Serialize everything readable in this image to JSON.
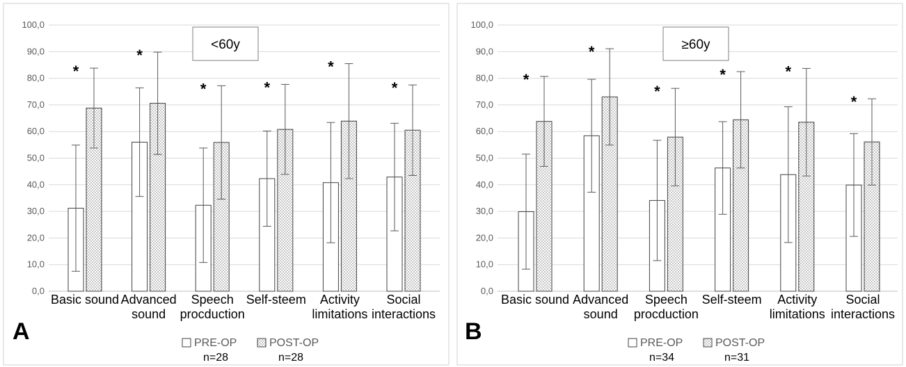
{
  "chart_data": [
    {
      "type": "bar",
      "panel_letter": "A",
      "inset_label": "<60y",
      "categories": [
        [
          "Basic sound"
        ],
        [
          "Advanced",
          "sound"
        ],
        [
          "Speech",
          "procduction"
        ],
        [
          "Self-steem"
        ],
        [
          "Activity",
          "limitations"
        ],
        [
          "Social",
          "interactions"
        ]
      ],
      "ylim": [
        0,
        100
      ],
      "yticks": [
        "0,0",
        "10,0",
        "20,0",
        "30,0",
        "40,0",
        "50,0",
        "60,0",
        "70,0",
        "80,0",
        "90,0",
        "100,0"
      ],
      "grid": true,
      "series": [
        {
          "name": "PRE-OP",
          "n_label": "n=28",
          "fill": "#ffffff",
          "values": [
            31.2,
            56.0,
            32.3,
            42.3,
            40.8,
            42.9
          ],
          "sd": [
            23.7,
            20.4,
            21.5,
            17.9,
            22.6,
            20.2
          ]
        },
        {
          "name": "POST-OP",
          "n_label": "n=28",
          "fill": "dotted",
          "values": [
            68.8,
            70.6,
            55.9,
            60.8,
            63.9,
            60.5
          ],
          "sd": [
            15.0,
            19.2,
            21.3,
            16.9,
            21.6,
            17.0
          ]
        }
      ],
      "significance_marker": "*",
      "significant": [
        true,
        true,
        true,
        true,
        true,
        true
      ]
    },
    {
      "type": "bar",
      "panel_letter": "B",
      "inset_label": "≥60y",
      "categories": [
        [
          "Basic sound"
        ],
        [
          "Advanced",
          "sound"
        ],
        [
          "Speech",
          "procduction"
        ],
        [
          "Self-steem"
        ],
        [
          "Activity",
          "limitations"
        ],
        [
          "Social",
          "interactions"
        ]
      ],
      "ylim": [
        0,
        100
      ],
      "yticks": [
        "0,0",
        "10,0",
        "20,0",
        "30,0",
        "40,0",
        "50,0",
        "60,0",
        "70,0",
        "80,0",
        "90,0",
        "100,0"
      ],
      "grid": true,
      "series": [
        {
          "name": "PRE-OP",
          "n_label": "n=34",
          "fill": "#ffffff",
          "values": [
            29.9,
            58.4,
            34.1,
            46.3,
            43.8,
            39.9
          ],
          "sd": [
            21.6,
            21.2,
            22.6,
            17.4,
            25.5,
            19.3
          ]
        },
        {
          "name": "POST-OP",
          "n_label": "n=31",
          "fill": "dotted",
          "values": [
            63.8,
            73.0,
            57.9,
            64.4,
            63.5,
            56.1
          ],
          "sd": [
            16.9,
            18.1,
            18.3,
            18.1,
            20.2,
            16.2
          ]
        }
      ],
      "significance_marker": "*",
      "significant": [
        true,
        true,
        true,
        true,
        true,
        true
      ]
    }
  ]
}
